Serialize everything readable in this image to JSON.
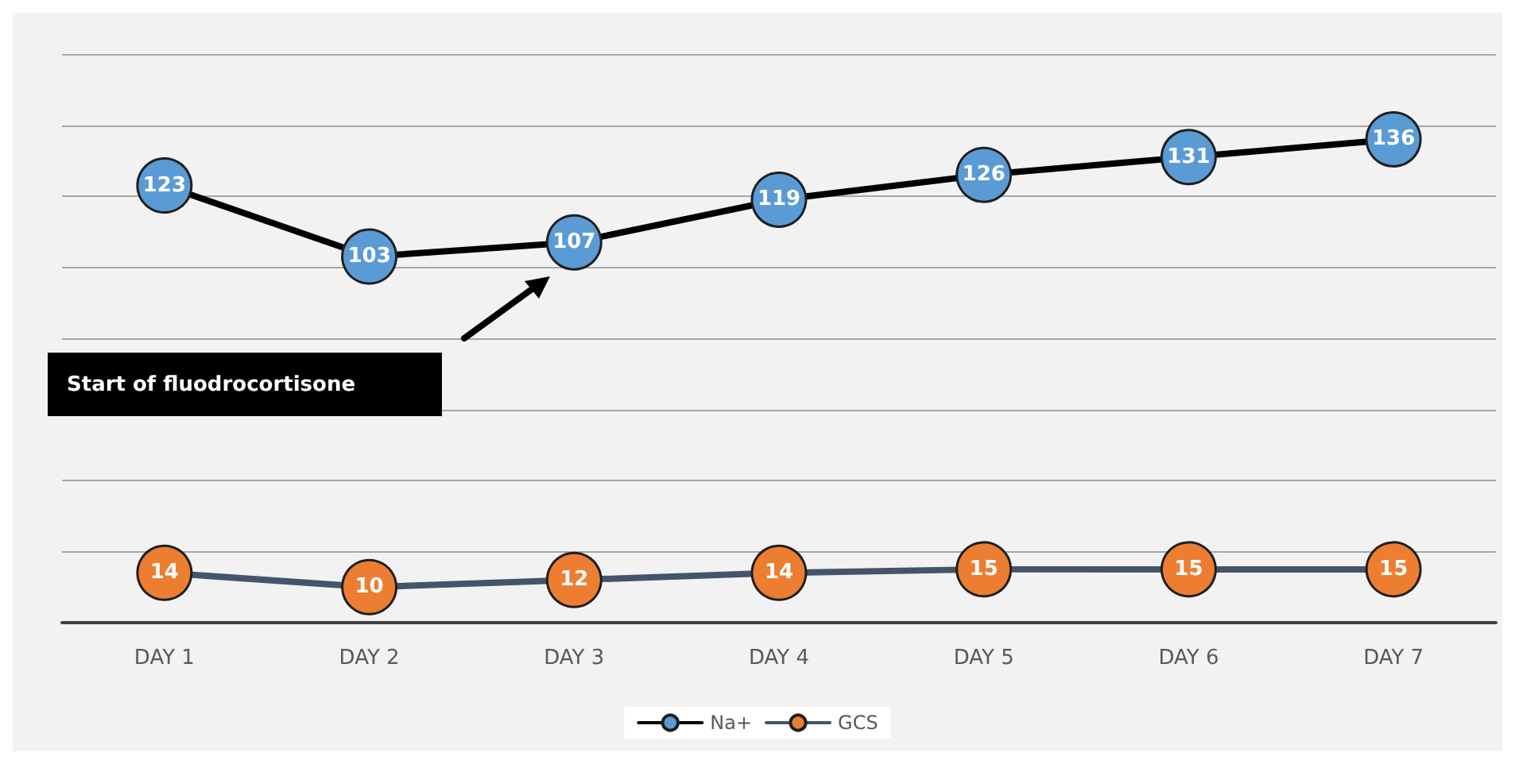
{
  "chart_data": {
    "type": "line",
    "categories": [
      "DAY 1",
      "DAY 2",
      "DAY 3",
      "DAY 4",
      "DAY 5",
      "DAY 6",
      "DAY 7"
    ],
    "series": [
      {
        "name": "Na+",
        "color": "#000000",
        "colors": [
          "#5b9bd5",
          "#5b9bd5",
          "#5b9bd5",
          "#5b9bd5",
          "#5b9bd5",
          "#5b9bd5",
          "#5b9bd5"
        ],
        "values": [
          123,
          103,
          107,
          119,
          126,
          131,
          136
        ]
      },
      {
        "name": "GCS",
        "color": "#44546a",
        "colors": [
          "#ed7d31",
          "#ed7d31",
          "#ed7d31",
          "#ed7d31",
          "#ed7d31",
          "#ed7d31",
          "#ed7d31"
        ],
        "values": [
          14,
          10,
          12,
          14,
          15,
          15,
          15
        ]
      }
    ],
    "ylim": [
      0,
      160
    ],
    "yticks": [
      0,
      20,
      40,
      60,
      80,
      100,
      120,
      140,
      160
    ],
    "tick_labels": "x",
    "grid": "y",
    "legend": "bottom",
    "marker": "circle",
    "line_style": "solid",
    "data_labels": true,
    "annotations": [
      "Start of fluodrocortisone"
    ]
  }
}
